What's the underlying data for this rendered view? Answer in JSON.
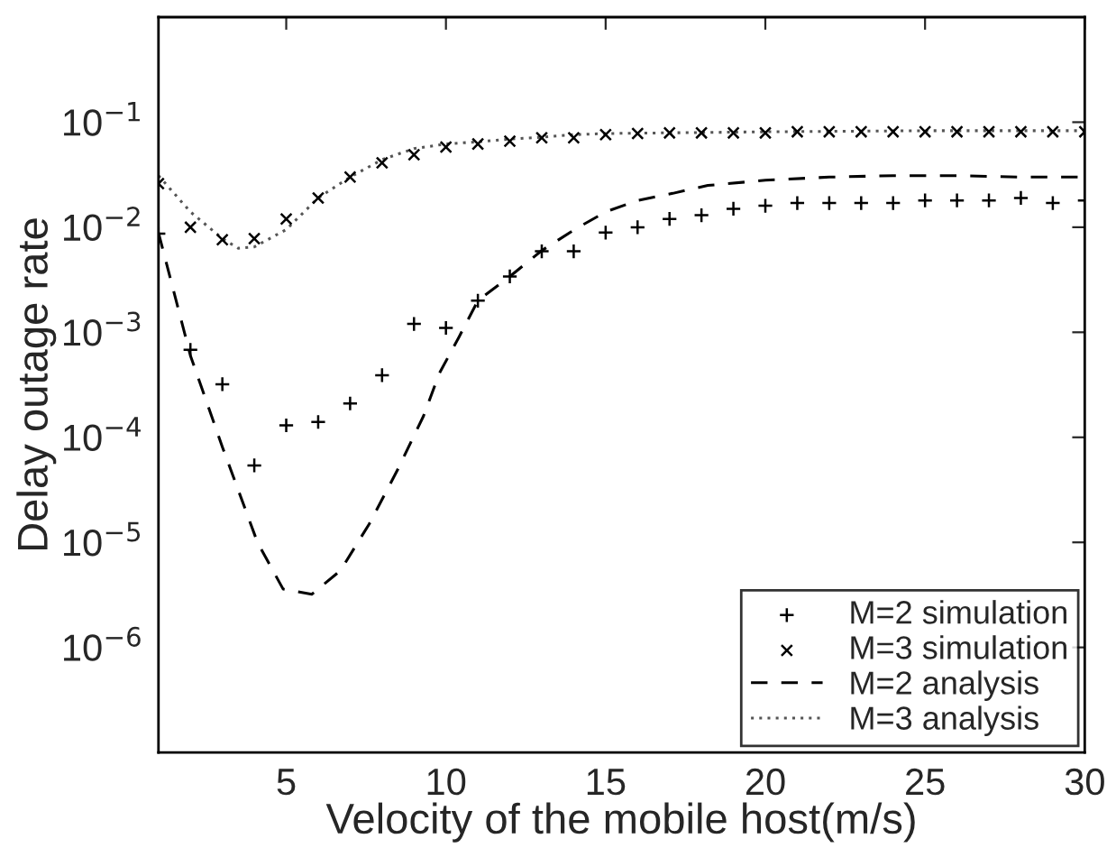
{
  "chart_data": {
    "type": "line",
    "xlabel": "Velocity of the mobile host(m/s)",
    "ylabel": "Delay outage rate",
    "log": "y",
    "xlim": [
      1,
      30
    ],
    "ylim": [
      1e-07,
      1
    ],
    "xticks": [
      5,
      10,
      15,
      20,
      25,
      30
    ],
    "yticks": [
      {
        "value": 1e-06,
        "label": "10$^{−6}$"
      },
      {
        "value": 1e-05,
        "label": "10$^{−5}$"
      },
      {
        "value": 0.0001,
        "label": "10$^{−4}$"
      },
      {
        "value": 0.001,
        "label": "10$^{−3}$"
      },
      {
        "value": 0.01,
        "label": "10$^{−2}$"
      },
      {
        "value": 0.1,
        "label": "10$^{−1}$"
      }
    ],
    "grid": false,
    "legend": "bottom right",
    "series": [
      {
        "name": "M=2 simulation",
        "type": "scatter",
        "marker": "plus",
        "color": "#000000",
        "x": [
          1,
          2,
          3,
          4,
          5,
          6,
          7,
          8,
          9,
          10,
          11,
          12,
          13,
          14,
          15,
          16,
          17,
          18,
          19,
          20,
          21,
          22,
          23,
          24,
          25,
          26,
          27,
          28,
          29,
          30
        ],
        "values": [
          0.0087,
          0.00068,
          0.00032,
          5.4e-05,
          0.00013,
          0.00014,
          0.00021,
          0.00039,
          0.0012,
          0.0011,
          0.002,
          0.0034,
          0.0059,
          0.0059,
          0.0089,
          0.01,
          0.012,
          0.013,
          0.015,
          0.016,
          0.017,
          0.017,
          0.017,
          0.017,
          0.018,
          0.018,
          0.018,
          0.019,
          0.017,
          0.018
        ]
      },
      {
        "name": "M=3 simulation",
        "type": "scatter",
        "marker": "cross",
        "color": "#000000",
        "x": [
          1,
          2,
          3,
          4,
          5,
          6,
          7,
          8,
          9,
          10,
          11,
          12,
          13,
          14,
          15,
          16,
          17,
          18,
          19,
          20,
          21,
          22,
          23,
          24,
          25,
          26,
          27,
          28,
          29,
          30
        ],
        "values": [
          0.026,
          0.01,
          0.0076,
          0.0078,
          0.012,
          0.019,
          0.03,
          0.041,
          0.049,
          0.058,
          0.062,
          0.066,
          0.071,
          0.071,
          0.076,
          0.078,
          0.079,
          0.079,
          0.079,
          0.079,
          0.081,
          0.081,
          0.081,
          0.081,
          0.081,
          0.081,
          0.081,
          0.081,
          0.081,
          0.081
        ]
      },
      {
        "name": "M=2 analysis",
        "line_style": "dashed",
        "color": "#000000",
        "x": [
          1,
          2,
          3,
          4.1,
          4.9,
          5.8,
          6.7,
          7.6,
          8.5,
          9.3,
          9.8,
          10.4,
          11,
          12,
          13,
          14.1,
          15,
          16,
          17.1,
          18.2,
          20,
          22,
          24,
          26,
          28,
          30
        ],
        "values": [
          0.0089,
          0.0006,
          8.1e-05,
          1e-05,
          3.6e-06,
          3.2e-06,
          5.4e-06,
          1.5e-05,
          5e-05,
          0.00016,
          0.00041,
          0.00089,
          0.002,
          0.0034,
          0.006,
          0.0098,
          0.014,
          0.018,
          0.021,
          0.025,
          0.028,
          0.03,
          0.031,
          0.031,
          0.03,
          0.03
        ]
      },
      {
        "name": "M=3 analysis",
        "line_style": "dotted",
        "color": "#555555",
        "x": [
          1,
          2,
          3,
          3.5,
          4,
          5,
          6,
          7,
          8,
          9,
          10,
          11,
          12,
          13,
          14,
          15,
          20,
          25,
          30
        ],
        "values": [
          0.031,
          0.014,
          0.0078,
          0.0063,
          0.0065,
          0.0095,
          0.019,
          0.03,
          0.044,
          0.056,
          0.062,
          0.065,
          0.069,
          0.072,
          0.076,
          0.078,
          0.081,
          0.083,
          0.083
        ]
      }
    ]
  }
}
